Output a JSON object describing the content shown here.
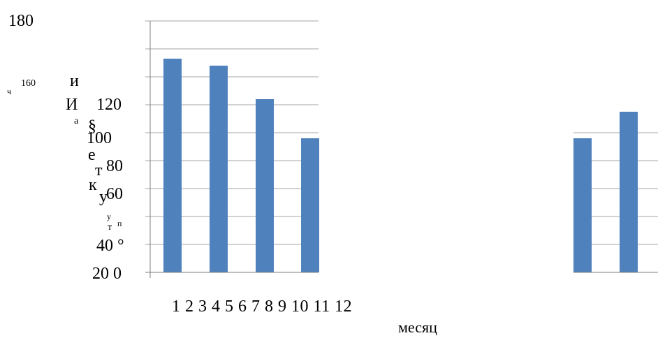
{
  "chart_data": {
    "type": "bar",
    "categories": [
      "1",
      "2",
      "3",
      "4",
      "5",
      "6",
      "7",
      "8",
      "9",
      "10",
      "11",
      "12"
    ],
    "values": [
      153,
      148,
      124,
      96,
      null,
      null,
      null,
      null,
      null,
      null,
      96,
      115
    ],
    "xlabel": "месяц",
    "ylim": [
      0,
      180
    ],
    "grid": true,
    "bar_color": "#4f81bd",
    "grid_color": "#a6a6a6",
    "y_tick_labels": [
      "180",
      "160",
      "120",
      "100",
      "80",
      "60",
      "40 °",
      "20 0"
    ],
    "x_tick_label_text": "1 2 3 4 5 6 7 8 9 10 11 12",
    "ylabel_fragments": [
      "ч",
      "и",
      "И",
      "а",
      "§",
      "е",
      "т",
      "к",
      "у",
      "т",
      "п",
      "у"
    ]
  }
}
